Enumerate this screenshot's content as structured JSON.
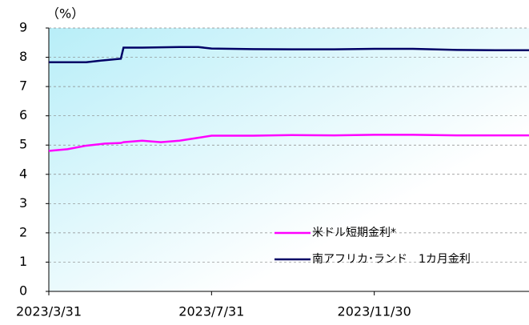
{
  "chart_data": {
    "type": "line",
    "unit_label": "（%）",
    "x": [
      "2023/3/31",
      "2023/4/14",
      "2023/4/28",
      "2023/5/12",
      "2023/5/24",
      "2023/5/26",
      "2023/6/9",
      "2023/6/23",
      "2023/7/7",
      "2023/7/21",
      "2023/7/31",
      "2023/8/31",
      "2023/9/29",
      "2023/10/31",
      "2023/11/30",
      "2023/12/29",
      "2024/1/31",
      "2024/2/29",
      "2024/3/25"
    ],
    "series": [
      {
        "name": "米ドル短期金利*",
        "color": "#ff00ff",
        "values": [
          4.8,
          4.86,
          4.98,
          5.05,
          5.07,
          5.1,
          5.15,
          5.1,
          5.15,
          5.25,
          5.32,
          5.32,
          5.34,
          5.33,
          5.35,
          5.35,
          5.33,
          5.33,
          5.33
        ]
      },
      {
        "name": "南アフリカ･ランド　1カ月金利",
        "color": "#000066",
        "values": [
          7.83,
          7.83,
          7.83,
          7.9,
          7.95,
          8.33,
          8.33,
          8.34,
          8.35,
          8.35,
          8.3,
          8.28,
          8.27,
          8.27,
          8.29,
          8.29,
          8.25,
          8.24,
          8.24
        ]
      }
    ],
    "xlim": [
      "2023/3/31",
      "2024/3/25"
    ],
    "xticks": [
      "2023/3/31",
      "2023/7/31",
      "2023/11/30"
    ],
    "ylim": [
      0,
      9
    ],
    "yticks": [
      0,
      1,
      2,
      3,
      4,
      5,
      6,
      7,
      8,
      9
    ],
    "grid": true,
    "legend": "lower right"
  }
}
